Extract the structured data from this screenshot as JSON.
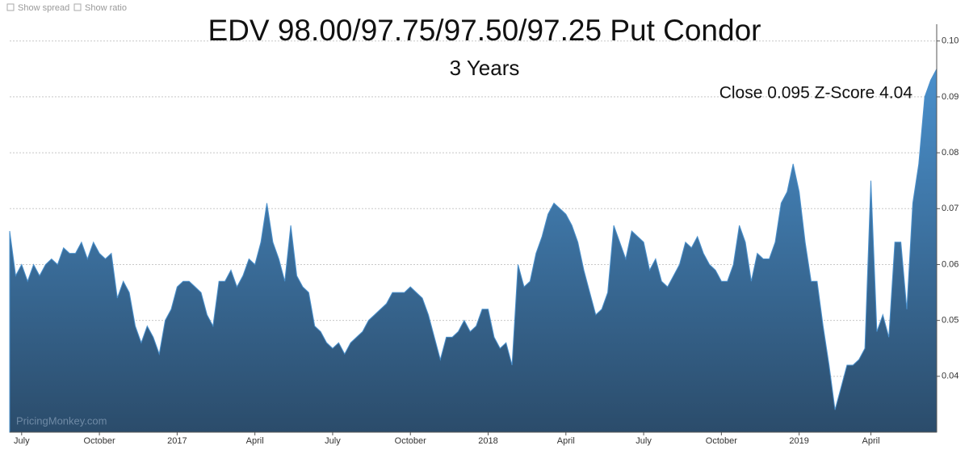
{
  "controls": [
    "Show spread",
    "Show ratio"
  ],
  "chart_data": {
    "type": "area",
    "title": "EDV 98.00/97.75/97.50/97.25 Put Condor",
    "subtitle": "3 Years",
    "annotation": "Close 0.095 Z-Score 4.04",
    "watermark": "PricingMonkey.com",
    "color": "#4a90cc",
    "grid": true,
    "ylim": [
      0.03,
      0.103
    ],
    "yticks": [
      0.04,
      0.05,
      0.06,
      0.07,
      0.08,
      0.09,
      {
        "value": 0.1,
        "label": "0.10"
      }
    ],
    "categories": [
      null,
      null,
      "July",
      null,
      null,
      null,
      null,
      null,
      null,
      null,
      null,
      null,
      null,
      null,
      null,
      "October",
      null,
      null,
      null,
      null,
      null,
      null,
      null,
      null,
      null,
      null,
      null,
      null,
      "2017",
      null,
      null,
      null,
      null,
      null,
      null,
      null,
      null,
      null,
      null,
      null,
      null,
      "April",
      null,
      null,
      null,
      null,
      null,
      null,
      null,
      null,
      null,
      null,
      null,
      null,
      "July",
      null,
      null,
      null,
      null,
      null,
      null,
      null,
      null,
      null,
      null,
      null,
      null,
      "October",
      null,
      null,
      null,
      null,
      null,
      null,
      null,
      null,
      null,
      null,
      null,
      null,
      "2018",
      null,
      null,
      null,
      null,
      null,
      null,
      null,
      null,
      null,
      null,
      null,
      null,
      "April",
      null,
      null,
      null,
      null,
      null,
      null,
      null,
      null,
      null,
      null,
      null,
      null,
      "July",
      null,
      null,
      null,
      null,
      null,
      null,
      null,
      null,
      null,
      null,
      null,
      null,
      "October",
      null,
      null,
      null,
      null,
      null,
      null,
      null,
      null,
      null,
      null,
      null,
      null,
      "2019",
      null,
      null,
      null,
      null,
      null,
      null,
      null,
      null,
      null,
      null,
      null,
      "April",
      null,
      null,
      null,
      null,
      null,
      null,
      null,
      null,
      null,
      null,
      null
    ],
    "values": [
      0.066,
      0.058,
      0.06,
      0.057,
      0.06,
      0.058,
      0.06,
      0.061,
      0.06,
      0.063,
      0.062,
      0.062,
      0.064,
      0.061,
      0.064,
      0.062,
      0.061,
      0.062,
      0.054,
      0.057,
      0.055,
      0.049,
      0.046,
      0.049,
      0.047,
      0.044,
      0.05,
      0.052,
      0.056,
      0.057,
      0.057,
      0.056,
      0.055,
      0.051,
      0.049,
      0.057,
      0.057,
      0.059,
      0.056,
      0.058,
      0.061,
      0.06,
      0.064,
      0.071,
      0.064,
      0.061,
      0.057,
      0.067,
      0.058,
      0.056,
      0.055,
      0.049,
      0.048,
      0.046,
      0.045,
      0.046,
      0.044,
      0.046,
      0.047,
      0.048,
      0.05,
      0.051,
      0.052,
      0.053,
      0.055,
      0.055,
      0.055,
      0.056,
      0.055,
      0.054,
      0.051,
      0.047,
      0.043,
      0.047,
      0.047,
      0.048,
      0.05,
      0.048,
      0.049,
      0.052,
      0.052,
      0.047,
      0.045,
      0.046,
      0.042,
      0.06,
      0.056,
      0.057,
      0.062,
      0.065,
      0.069,
      0.071,
      0.07,
      0.069,
      0.067,
      0.064,
      0.059,
      0.055,
      0.051,
      0.052,
      0.055,
      0.067,
      0.064,
      0.061,
      0.066,
      0.065,
      0.064,
      0.059,
      0.061,
      0.057,
      0.056,
      0.058,
      0.06,
      0.064,
      0.063,
      0.065,
      0.062,
      0.06,
      0.059,
      0.057,
      0.057,
      0.06,
      0.067,
      0.064,
      0.057,
      0.062,
      0.061,
      0.061,
      0.064,
      0.071,
      0.073,
      0.078,
      0.073,
      0.064,
      0.057,
      0.057,
      0.049,
      0.042,
      0.034,
      0.038,
      0.042,
      0.042,
      0.043,
      0.045,
      0.075,
      0.048,
      0.051,
      0.047,
      0.064,
      0.064,
      0.052,
      0.071,
      0.078,
      0.09,
      0.093,
      0.095
    ]
  }
}
